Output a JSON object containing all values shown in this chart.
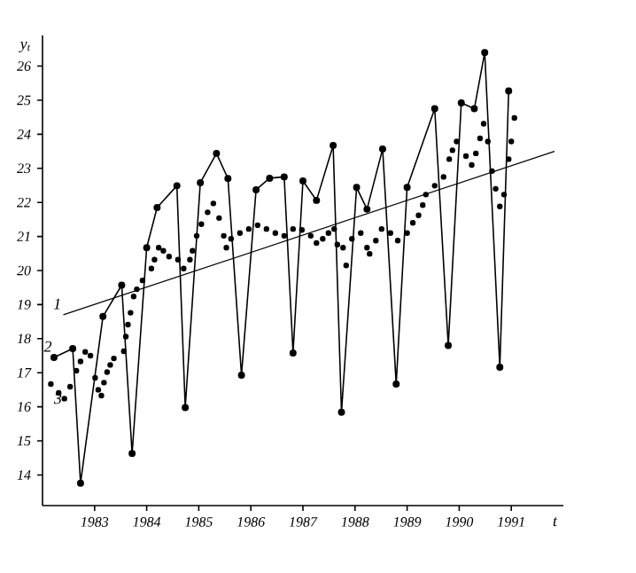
{
  "chart_data": {
    "type": "line",
    "xlabel": "t",
    "ylabel": "y$_{t}$",
    "xlim": [
      1982,
      1992
    ],
    "ylim": [
      13.1,
      26.9
    ],
    "xticks": [
      1983,
      1984,
      1985,
      1986,
      1987,
      1988,
      1989,
      1990,
      1991
    ],
    "yticks": [
      14,
      15,
      16,
      17,
      18,
      19,
      20,
      21,
      22,
      23,
      24,
      25,
      26
    ],
    "series": [
      {
        "name": "1",
        "marker": "none",
        "color": "#000000",
        "x": [
          1982.4,
          1991.83
        ],
        "values": [
          18.7,
          23.5
        ]
      },
      {
        "name": "2",
        "marker": "circle",
        "color": "#000000",
        "x": [
          1982.22,
          1982.58,
          1982.73,
          1983.16,
          1983.52,
          1983.72,
          1984.0,
          1984.2,
          1984.58,
          1984.74,
          1985.03,
          1985.34,
          1985.56,
          1985.82,
          1986.1,
          1986.36,
          1986.64,
          1986.81,
          1987.0,
          1987.26,
          1987.58,
          1987.74,
          1988.03,
          1988.23,
          1988.53,
          1988.79,
          1989.0,
          1989.53,
          1989.79,
          1990.04,
          1990.29,
          1990.49,
          1990.78,
          1990.95
        ],
        "values": [
          17.45,
          17.71,
          13.76,
          18.65,
          19.57,
          14.63,
          20.67,
          21.85,
          22.49,
          15.98,
          22.58,
          23.44,
          22.7,
          16.93,
          22.37,
          22.71,
          22.75,
          17.58,
          22.63,
          22.06,
          23.67,
          15.84,
          22.44,
          21.8,
          23.57,
          16.67,
          22.44,
          24.75,
          17.8,
          24.92,
          24.75,
          26.4,
          17.16,
          25.27
        ]
      },
      {
        "name": "3",
        "type": "scatter",
        "marker": "circle",
        "color": "#000000",
        "x": [
          1982.16,
          1982.31,
          1982.42,
          1982.53,
          1982.65,
          1982.73,
          1982.82,
          1982.92,
          1983.01,
          1983.07,
          1983.13,
          1983.18,
          1983.24,
          1983.3,
          1983.37,
          1983.56,
          1983.6,
          1983.64,
          1983.69,
          1983.75,
          1983.81,
          1983.92,
          1984.09,
          1984.15,
          1984.23,
          1984.32,
          1984.43,
          1984.6,
          1984.71,
          1984.83,
          1984.88,
          1984.96,
          1985.05,
          1985.17,
          1985.28,
          1985.39,
          1985.48,
          1985.53,
          1985.62,
          1985.79,
          1985.96,
          1986.13,
          1986.3,
          1986.47,
          1986.64,
          1986.81,
          1986.98,
          1987.15,
          1987.26,
          1987.38,
          1987.49,
          1987.6,
          1987.66,
          1987.77,
          1987.83,
          1987.94,
          1988.11,
          1988.23,
          1988.28,
          1988.4,
          1988.51,
          1988.68,
          1988.82,
          1989.0,
          1989.11,
          1989.22,
          1989.3,
          1989.36,
          1989.53,
          1989.7,
          1989.81,
          1989.87,
          1989.95,
          1990.13,
          1990.24,
          1990.32,
          1990.4,
          1990.47,
          1990.55,
          1990.63,
          1990.7,
          1990.78,
          1990.86,
          1990.95,
          1991.0,
          1991.06
        ],
        "values": [
          16.67,
          16.41,
          16.24,
          16.59,
          17.06,
          17.33,
          17.61,
          17.5,
          16.85,
          16.5,
          16.33,
          16.71,
          17.02,
          17.23,
          17.42,
          17.63,
          18.06,
          18.41,
          18.76,
          19.24,
          19.45,
          19.71,
          20.06,
          20.32,
          20.67,
          20.58,
          20.41,
          20.32,
          20.06,
          20.32,
          20.58,
          21.02,
          21.36,
          21.71,
          21.97,
          21.54,
          21.02,
          20.67,
          20.93,
          21.1,
          21.22,
          21.33,
          21.22,
          21.1,
          21.02,
          21.22,
          21.19,
          21.02,
          20.81,
          20.93,
          21.1,
          21.22,
          20.76,
          20.67,
          20.15,
          20.93,
          21.1,
          20.67,
          20.49,
          20.88,
          21.22,
          21.1,
          20.88,
          21.1,
          21.4,
          21.62,
          21.92,
          22.23,
          22.49,
          22.75,
          23.27,
          23.53,
          23.79,
          23.36,
          23.1,
          23.44,
          23.88,
          24.31,
          23.79,
          22.92,
          22.4,
          21.88,
          22.23,
          23.27,
          23.79,
          24.48
        ]
      }
    ]
  }
}
